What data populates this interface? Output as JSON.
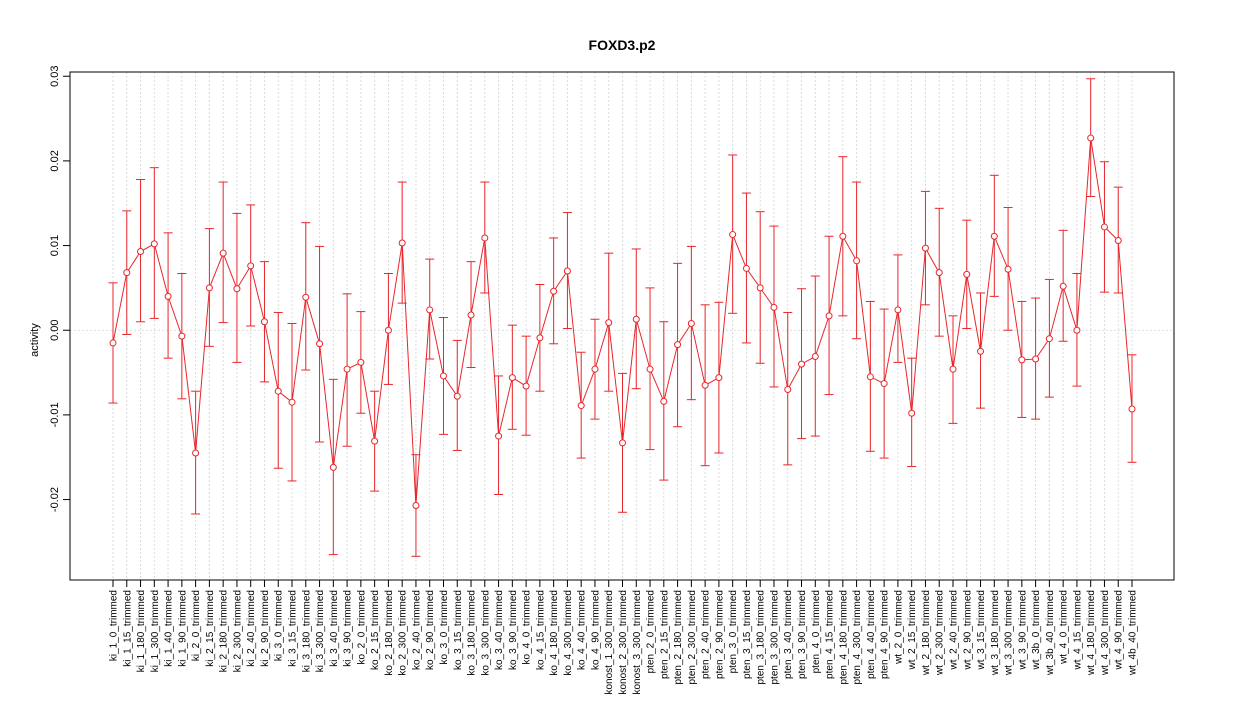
{
  "chart_data": {
    "type": "line",
    "title": "FOXD3.p2",
    "xlabel": "",
    "ylabel": "activity",
    "ylim": [
      -0.0295,
      0.0305
    ],
    "yticks": [
      -0.02,
      -0.01,
      0.0,
      0.01,
      0.02,
      0.03
    ],
    "yticklabels": [
      "-0.02",
      "-0.01",
      "0.00",
      "0.01",
      "0.02",
      "0.03"
    ],
    "grid": true,
    "line_color": "#e8262b",
    "grid_color": "#d3d3d3",
    "categories": [
      "ki_1_0_trimmed",
      "ki_1_15_trimmed",
      "ki_1_180_trimmed",
      "ki_1_300_trimmed",
      "ki_1_40_trimmed",
      "ki_1_90_trimmed",
      "ki_2_0_trimmed",
      "ki_2_15_trimmed",
      "ki_2_180_trimmed",
      "ki_2_300_trimmed",
      "ki_2_40_trimmed",
      "ki_2_90_trimmed",
      "ki_3_0_trimmed",
      "ki_3_15_trimmed",
      "ki_3_180_trimmed",
      "ki_3_300_trimmed",
      "ki_3_40_trimmed",
      "ki_3_90_trimmed",
      "ko_2_0_trimmed",
      "ko_2_15_trimmed",
      "ko_2_180_trimmed",
      "ko_2_300_trimmed",
      "ko_2_40_trimmed",
      "ko_2_90_trimmed",
      "ko_3_0_trimmed",
      "ko_3_15_trimmed",
      "ko_3_180_trimmed",
      "ko_3_300_trimmed",
      "ko_3_40_trimmed",
      "ko_3_90_trimmed",
      "ko_4_0_trimmed",
      "ko_4_15_trimmed",
      "ko_4_180_trimmed",
      "ko_4_300_trimmed",
      "ko_4_40_trimmed",
      "ko_4_90_trimmed",
      "konost_1_300_trimmed",
      "konost_2_300_trimmed",
      "konost_3_300_trimmed",
      "pten_2_0_trimmed",
      "pten_2_15_trimmed",
      "pten_2_180_trimmed",
      "pten_2_300_trimmed",
      "pten_2_40_trimmed",
      "pten_2_90_trimmed",
      "pten_3_0_trimmed",
      "pten_3_15_trimmed",
      "pten_3_180_trimmed",
      "pten_3_300_trimmed",
      "pten_3_40_trimmed",
      "pten_3_90_trimmed",
      "pten_4_0_trimmed",
      "pten_4_15_trimmed",
      "pten_4_180_trimmed",
      "pten_4_300_trimmed",
      "pten_4_40_trimmed",
      "pten_4_90_trimmed",
      "wt_2_0_trimmed",
      "wt_2_15_trimmed",
      "wt_2_180_trimmed",
      "wt_2_300_trimmed",
      "wt_2_40_trimmed",
      "wt_2_90_trimmed",
      "wt_3_15_trimmed",
      "wt_3_180_trimmed",
      "wt_3_300_trimmed",
      "wt_3_90_trimmed",
      "wt_3b_0_trimmed",
      "wt_3b_40_trimmed",
      "wt_4_0_trimmed",
      "wt_4_15_trimmed",
      "wt_4_180_trimmed",
      "wt_4_300_trimmed",
      "wt_4_90_trimmed",
      "wt_4b_40_trimmed"
    ],
    "series": [
      {
        "values": [
          -0.0015,
          0.0068,
          0.0093,
          0.0102,
          0.004,
          -0.0007,
          -0.0145,
          0.005,
          0.0091,
          0.0049,
          0.0076,
          0.001,
          -0.0072,
          -0.0085,
          0.0039,
          -0.0016,
          -0.0162,
          -0.0046,
          -0.0038,
          -0.0131,
          0.0,
          0.0103,
          -0.0207,
          0.0024,
          -0.0054,
          -0.0078,
          0.0018,
          0.0109,
          -0.0125,
          -0.0056,
          -0.0066,
          -0.0009,
          0.0046,
          0.007,
          -0.0089,
          -0.0046,
          0.0009,
          -0.0133,
          0.0013,
          -0.0046,
          -0.0084,
          -0.0017,
          0.0008,
          -0.0065,
          -0.0056,
          0.0113,
          0.0073,
          0.005,
          0.0027,
          -0.007,
          -0.004,
          -0.0031,
          0.0017,
          0.0111,
          0.0082,
          -0.0055,
          -0.0063,
          0.0024,
          -0.0098,
          0.0097,
          0.0068,
          -0.0046,
          0.0066,
          -0.0025,
          0.0111,
          0.0072,
          -0.0035,
          -0.0034,
          -0.001,
          0.0052,
          0.0,
          0.0227,
          0.0122,
          0.0106,
          -0.0093
        ],
        "upper": [
          0.0056,
          0.0141,
          0.0178,
          0.0192,
          0.0115,
          0.0067,
          -0.0072,
          0.012,
          0.0175,
          0.0138,
          0.0148,
          0.0081,
          0.0021,
          0.0008,
          0.0127,
          0.0099,
          -0.0058,
          0.0043,
          0.0022,
          -0.0072,
          0.0067,
          0.0175,
          -0.0147,
          0.0084,
          0.0015,
          -0.0012,
          0.0081,
          0.0175,
          -0.0054,
          0.0006,
          -0.0007,
          0.0054,
          0.0109,
          0.0139,
          -0.0026,
          0.0013,
          0.0091,
          -0.0051,
          0.0096,
          0.005,
          0.001,
          0.0079,
          0.0099,
          0.003,
          0.0033,
          0.0207,
          0.0162,
          0.014,
          0.0123,
          0.0021,
          0.0049,
          0.0064,
          0.0111,
          0.0205,
          0.0175,
          0.0034,
          0.0025,
          0.0089,
          -0.0033,
          0.0164,
          0.0144,
          0.0017,
          0.013,
          0.0044,
          0.0183,
          0.0145,
          0.0034,
          0.0038,
          0.006,
          0.0118,
          0.0067,
          0.0297,
          0.0199,
          0.0169,
          -0.0029
        ],
        "lower": [
          -0.0086,
          -0.0005,
          0.001,
          0.0014,
          -0.0033,
          -0.0081,
          -0.0217,
          -0.0019,
          0.0009,
          -0.0038,
          0.0005,
          -0.0061,
          -0.0163,
          -0.0178,
          -0.0047,
          -0.0132,
          -0.0265,
          -0.0137,
          -0.0098,
          -0.019,
          -0.0064,
          0.0032,
          -0.0267,
          -0.0034,
          -0.0123,
          -0.0142,
          -0.0044,
          0.0044,
          -0.0194,
          -0.0117,
          -0.0124,
          -0.0072,
          -0.0016,
          0.0002,
          -0.0151,
          -0.0105,
          -0.0072,
          -0.0215,
          -0.0069,
          -0.0141,
          -0.0177,
          -0.0114,
          -0.0082,
          -0.016,
          -0.0145,
          0.002,
          -0.0015,
          -0.0039,
          -0.0067,
          -0.0159,
          -0.0128,
          -0.0125,
          -0.0076,
          0.0017,
          -0.001,
          -0.0143,
          -0.0151,
          -0.0038,
          -0.0161,
          0.003,
          -0.0007,
          -0.011,
          0.0002,
          -0.0092,
          0.004,
          0.0,
          -0.0103,
          -0.0105,
          -0.0079,
          -0.0013,
          -0.0066,
          0.0158,
          0.0045,
          0.0044,
          -0.0156
        ]
      }
    ]
  }
}
